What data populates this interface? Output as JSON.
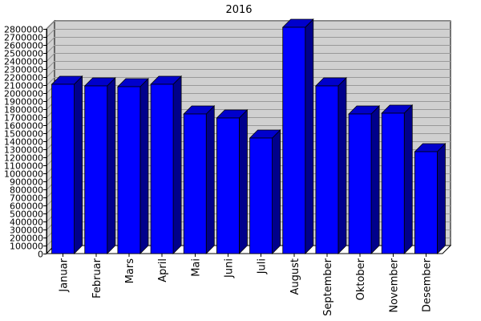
{
  "chart_data": {
    "type": "bar",
    "title": "2016",
    "xlabel": "",
    "ylabel": "",
    "categories": [
      "Januar",
      "Februar",
      "Mars",
      "April",
      "Mai",
      "Juni",
      "Juli",
      "August",
      "September",
      "Oktober",
      "November",
      "Desember"
    ],
    "values": [
      2110000,
      2090000,
      2080000,
      2110000,
      1740000,
      1690000,
      1440000,
      2820000,
      2090000,
      1740000,
      1750000,
      1270000
    ],
    "ylim": [
      0,
      2800000
    ],
    "ytick_step": 100000,
    "grid": true,
    "three_d": true,
    "colors": {
      "bar_front": "#0000ff",
      "bar_top": "#0000cc",
      "bar_side": "#00008b",
      "wall": "#d0d0d0",
      "floor": "#ffffff",
      "grid": "#999999"
    }
  }
}
